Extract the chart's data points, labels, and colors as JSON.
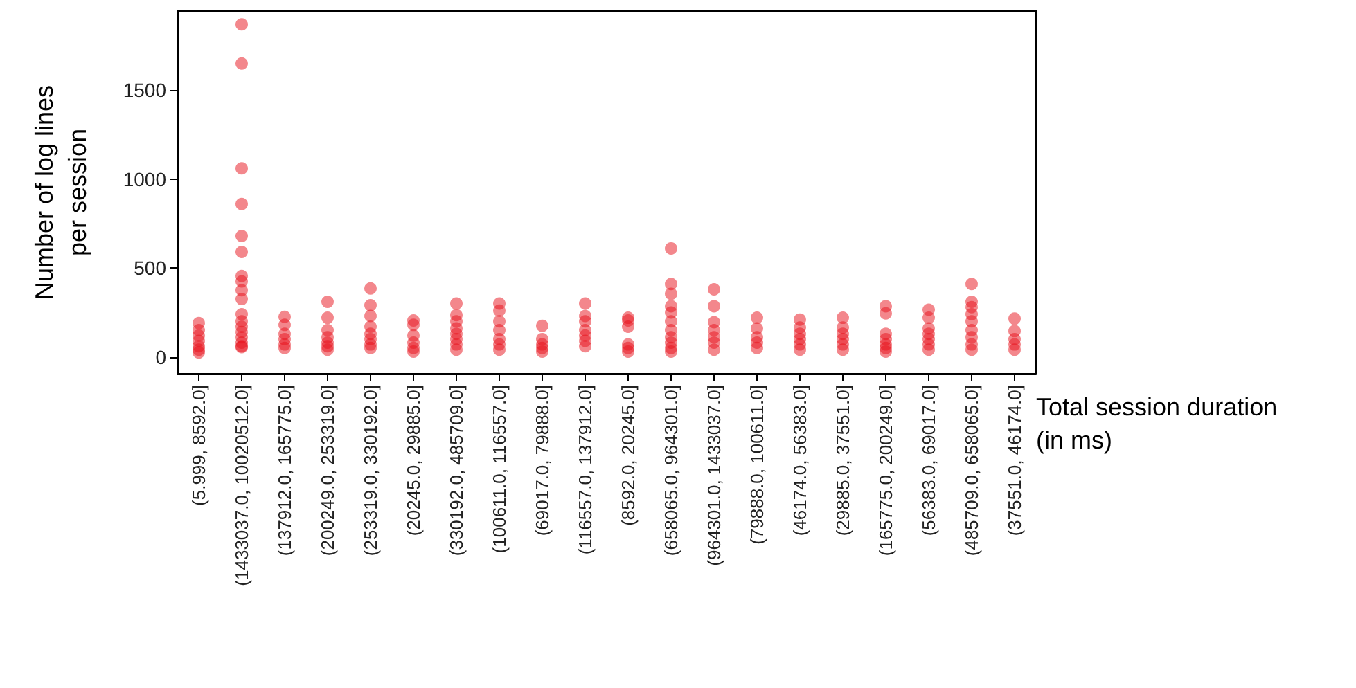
{
  "chart_data": {
    "type": "scatter",
    "xlabel": "Total session duration\n(in ms)",
    "ylabel": "Number of log lines\nper session",
    "categories": [
      "(5.999, 8592.0]",
      "(1433037.0, 10020512.0]",
      "(137912.0, 165775.0]",
      "(200249.0, 253319.0]",
      "(253319.0, 330192.0]",
      "(20245.0, 29885.0]",
      "(330192.0, 485709.0]",
      "(100611.0, 116557.0]",
      "(69017.0, 79888.0]",
      "(116557.0, 137912.0]",
      "(8592.0, 20245.0]",
      "(658065.0, 964301.0]",
      "(964301.0, 1433037.0]",
      "(79888.0, 100611.0]",
      "(46174.0, 56383.0]",
      "(29885.0, 37551.0]",
      "(165775.0, 200249.0]",
      "(56383.0, 69017.0]",
      "(485709.0, 658065.0]",
      "(37551.0, 46174.0]"
    ],
    "series": [
      {
        "color": "#e8101a",
        "x": [
          "(5.999, 8592.0]",
          "(5.999, 8592.0]",
          "(5.999, 8592.0]",
          "(5.999, 8592.0]",
          "(5.999, 8592.0]",
          "(5.999, 8592.0]",
          "(5.999, 8592.0]",
          "(1433037.0, 10020512.0]",
          "(1433037.0, 10020512.0]",
          "(1433037.0, 10020512.0]",
          "(1433037.0, 10020512.0]",
          "(1433037.0, 10020512.0]",
          "(1433037.0, 10020512.0]",
          "(1433037.0, 10020512.0]",
          "(1433037.0, 10020512.0]",
          "(1433037.0, 10020512.0]",
          "(1433037.0, 10020512.0]",
          "(1433037.0, 10020512.0]",
          "(1433037.0, 10020512.0]",
          "(1433037.0, 10020512.0]",
          "(1433037.0, 10020512.0]",
          "(1433037.0, 10020512.0]",
          "(1433037.0, 10020512.0]",
          "(1433037.0, 10020512.0]",
          "(1433037.0, 10020512.0]",
          "(137912.0, 165775.0]",
          "(137912.0, 165775.0]",
          "(137912.0, 165775.0]",
          "(137912.0, 165775.0]",
          "(137912.0, 165775.0]",
          "(137912.0, 165775.0]",
          "(200249.0, 253319.0]",
          "(200249.0, 253319.0]",
          "(200249.0, 253319.0]",
          "(200249.0, 253319.0]",
          "(200249.0, 253319.0]",
          "(200249.0, 253319.0]",
          "(200249.0, 253319.0]",
          "(253319.0, 330192.0]",
          "(253319.0, 330192.0]",
          "(253319.0, 330192.0]",
          "(253319.0, 330192.0]",
          "(253319.0, 330192.0]",
          "(253319.0, 330192.0]",
          "(253319.0, 330192.0]",
          "(253319.0, 330192.0]",
          "(20245.0, 29885.0]",
          "(20245.0, 29885.0]",
          "(20245.0, 29885.0]",
          "(20245.0, 29885.0]",
          "(20245.0, 29885.0]",
          "(20245.0, 29885.0]",
          "(330192.0, 485709.0]",
          "(330192.0, 485709.0]",
          "(330192.0, 485709.0]",
          "(330192.0, 485709.0]",
          "(330192.0, 485709.0]",
          "(330192.0, 485709.0]",
          "(330192.0, 485709.0]",
          "(330192.0, 485709.0]",
          "(100611.0, 116557.0]",
          "(100611.0, 116557.0]",
          "(100611.0, 116557.0]",
          "(100611.0, 116557.0]",
          "(100611.0, 116557.0]",
          "(100611.0, 116557.0]",
          "(100611.0, 116557.0]",
          "(69017.0, 79888.0]",
          "(69017.0, 79888.0]",
          "(69017.0, 79888.0]",
          "(69017.0, 79888.0]",
          "(69017.0, 79888.0]",
          "(116557.0, 137912.0]",
          "(116557.0, 137912.0]",
          "(116557.0, 137912.0]",
          "(116557.0, 137912.0]",
          "(116557.0, 137912.0]",
          "(116557.0, 137912.0]",
          "(116557.0, 137912.0]",
          "(8592.0, 20245.0]",
          "(8592.0, 20245.0]",
          "(8592.0, 20245.0]",
          "(8592.0, 20245.0]",
          "(8592.0, 20245.0]",
          "(8592.0, 20245.0]",
          "(658065.0, 964301.0]",
          "(658065.0, 964301.0]",
          "(658065.0, 964301.0]",
          "(658065.0, 964301.0]",
          "(658065.0, 964301.0]",
          "(658065.0, 964301.0]",
          "(658065.0, 964301.0]",
          "(658065.0, 964301.0]",
          "(658065.0, 964301.0]",
          "(658065.0, 964301.0]",
          "(658065.0, 964301.0]",
          "(964301.0, 1433037.0]",
          "(964301.0, 1433037.0]",
          "(964301.0, 1433037.0]",
          "(964301.0, 1433037.0]",
          "(964301.0, 1433037.0]",
          "(964301.0, 1433037.0]",
          "(964301.0, 1433037.0]",
          "(79888.0, 100611.0]",
          "(79888.0, 100611.0]",
          "(79888.0, 100611.0]",
          "(79888.0, 100611.0]",
          "(79888.0, 100611.0]",
          "(46174.0, 56383.0]",
          "(46174.0, 56383.0]",
          "(46174.0, 56383.0]",
          "(46174.0, 56383.0]",
          "(46174.0, 56383.0]",
          "(46174.0, 56383.0]",
          "(29885.0, 37551.0]",
          "(29885.0, 37551.0]",
          "(29885.0, 37551.0]",
          "(29885.0, 37551.0]",
          "(29885.0, 37551.0]",
          "(29885.0, 37551.0]",
          "(165775.0, 200249.0]",
          "(165775.0, 200249.0]",
          "(165775.0, 200249.0]",
          "(165775.0, 200249.0]",
          "(165775.0, 200249.0]",
          "(165775.0, 200249.0]",
          "(165775.0, 200249.0]",
          "(56383.0, 69017.0]",
          "(56383.0, 69017.0]",
          "(56383.0, 69017.0]",
          "(56383.0, 69017.0]",
          "(56383.0, 69017.0]",
          "(56383.0, 69017.0]",
          "(56383.0, 69017.0]",
          "(485709.0, 658065.0]",
          "(485709.0, 658065.0]",
          "(485709.0, 658065.0]",
          "(485709.0, 658065.0]",
          "(485709.0, 658065.0]",
          "(485709.0, 658065.0]",
          "(485709.0, 658065.0]",
          "(485709.0, 658065.0]",
          "(485709.0, 658065.0]",
          "(37551.0, 46174.0]",
          "(37551.0, 46174.0]",
          "(37551.0, 46174.0]",
          "(37551.0, 46174.0]",
          "(37551.0, 46174.0]"
        ],
        "values": [
          190,
          150,
          120,
          90,
          60,
          40,
          25,
          1870,
          1650,
          1060,
          860,
          680,
          590,
          455,
          425,
          375,
          325,
          240,
          200,
          170,
          140,
          110,
          80,
          60,
          55,
          225,
          180,
          130,
          100,
          70,
          50,
          310,
          220,
          150,
          110,
          80,
          60,
          40,
          385,
          290,
          230,
          170,
          130,
          100,
          70,
          50,
          205,
          180,
          120,
          80,
          50,
          30,
          300,
          235,
          200,
          160,
          130,
          100,
          70,
          40,
          300,
          260,
          200,
          150,
          100,
          70,
          40,
          175,
          100,
          70,
          50,
          30,
          300,
          230,
          200,
          150,
          120,
          90,
          60,
          220,
          205,
          170,
          70,
          50,
          30,
          610,
          410,
          355,
          285,
          250,
          200,
          150,
          110,
          80,
          50,
          30,
          380,
          285,
          195,
          150,
          110,
          80,
          40,
          220,
          160,
          110,
          80,
          50,
          210,
          165,
          130,
          100,
          70,
          40,
          220,
          165,
          130,
          100,
          70,
          40,
          285,
          245,
          130,
          100,
          70,
          50,
          30,
          265,
          220,
          160,
          130,
          100,
          70,
          40,
          410,
          310,
          280,
          240,
          200,
          150,
          110,
          70,
          40,
          215,
          145,
          100,
          70,
          40
        ]
      }
    ],
    "ylim": [
      -95,
      1945
    ],
    "yticks": [
      0,
      500,
      1000,
      1500
    ],
    "grid": false,
    "marker": "circle"
  }
}
